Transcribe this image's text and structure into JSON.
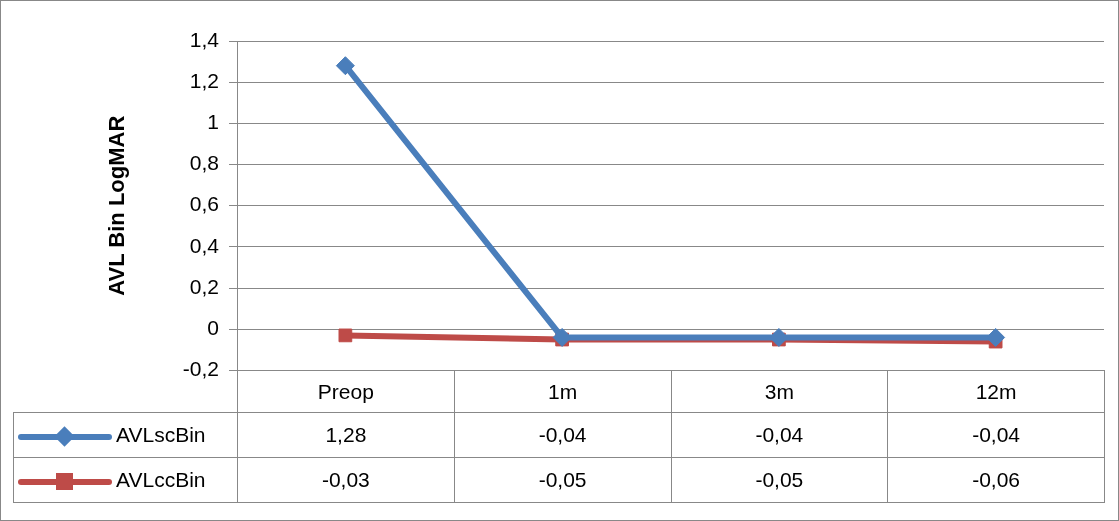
{
  "chart_data": {
    "type": "line",
    "ylabel": "AVL Bin LogMAR",
    "categories": [
      "Preop",
      "1m",
      "3m",
      "12m"
    ],
    "series": [
      {
        "name": "AVLscBin",
        "color": "#4a7ebb",
        "marker": "diamond",
        "values": [
          1.28,
          -0.04,
          -0.04,
          -0.04
        ],
        "value_labels": [
          "1,28",
          "-0,04",
          "-0,04",
          "-0,04"
        ]
      },
      {
        "name": "AVLccBin",
        "color": "#be4b48",
        "marker": "square",
        "values": [
          -0.03,
          -0.05,
          -0.05,
          -0.06
        ],
        "value_labels": [
          "-0,03",
          "-0,05",
          "-0,05",
          "-0,06"
        ]
      }
    ],
    "ylim": [
      -0.2,
      1.4
    ],
    "yticks": [
      {
        "value": -0.2,
        "label": "-0,2"
      },
      {
        "value": 0,
        "label": "0"
      },
      {
        "value": 0.2,
        "label": "0,2"
      },
      {
        "value": 0.4,
        "label": "0,4"
      },
      {
        "value": 0.6,
        "label": "0,6"
      },
      {
        "value": 0.8,
        "label": "0,8"
      },
      {
        "value": 1,
        "label": "1"
      },
      {
        "value": 1.2,
        "label": "1,2"
      },
      {
        "value": 1.4,
        "label": "1,4"
      }
    ],
    "grid": "y",
    "legend": "bottom",
    "line_style": "solid"
  }
}
